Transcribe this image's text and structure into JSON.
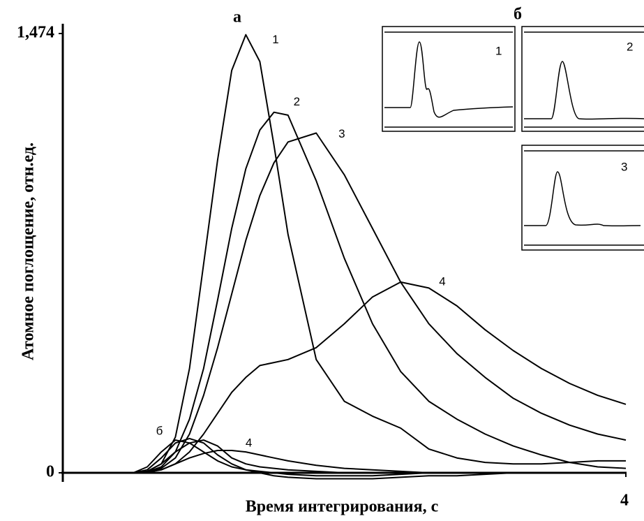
{
  "chart_data": {
    "type": "line",
    "panel_label": "а",
    "x_label": "Время интегрирования, с",
    "y_label": "Атомное поглощение, отн.ед.",
    "xlim": [
      0,
      4
    ],
    "ylim": [
      0,
      1.474
    ],
    "xticks": [
      4
    ],
    "yticks": [
      0,
      {
        "value": 1.474,
        "label": "1,474"
      }
    ],
    "x": [
      0,
      0.5,
      0.6,
      0.7,
      0.8,
      0.9,
      1.0,
      1.1,
      1.2,
      1.3,
      1.4,
      1.5,
      1.6,
      1.8,
      2.0,
      2.2,
      2.4,
      2.6,
      2.8,
      3.0,
      3.2,
      3.4,
      3.6,
      3.8,
      4.0
    ],
    "series": [
      {
        "name": "1",
        "color": "#000000",
        "values": [
          0,
          0,
          0.005,
          0.03,
          0.12,
          0.35,
          0.7,
          1.05,
          1.35,
          1.47,
          1.38,
          1.1,
          0.8,
          0.38,
          0.24,
          0.19,
          0.15,
          0.08,
          0.05,
          0.035,
          0.03,
          0.03,
          0.035,
          0.04,
          0.04
        ]
      },
      {
        "name": "2",
        "color": "#000000",
        "values": [
          0,
          0,
          0.003,
          0.02,
          0.07,
          0.18,
          0.35,
          0.58,
          0.82,
          1.02,
          1.15,
          1.21,
          1.2,
          0.98,
          0.72,
          0.5,
          0.34,
          0.24,
          0.18,
          0.13,
          0.09,
          0.06,
          0.035,
          0.02,
          0.015
        ]
      },
      {
        "name": "3",
        "color": "#000000",
        "values": [
          0,
          0,
          0.002,
          0.015,
          0.05,
          0.13,
          0.26,
          0.42,
          0.6,
          0.78,
          0.93,
          1.04,
          1.11,
          1.14,
          1.0,
          0.82,
          0.64,
          0.5,
          0.4,
          0.32,
          0.25,
          0.2,
          0.16,
          0.13,
          0.11
        ]
      },
      {
        "name": "4",
        "color": "#000000",
        "values": [
          0,
          0,
          0.002,
          0.01,
          0.03,
          0.07,
          0.13,
          0.2,
          0.27,
          0.32,
          0.36,
          0.37,
          0.38,
          0.42,
          0.5,
          0.59,
          0.64,
          0.62,
          0.56,
          0.48,
          0.41,
          0.35,
          0.3,
          0.26,
          0.23
        ]
      }
    ],
    "small_series": [
      {
        "name": "б",
        "color": "#000000",
        "values": [
          0,
          0,
          0.01,
          0.05,
          0.1,
          0.115,
          0.1,
          0.06,
          0.03,
          0.01,
          0,
          -0.01,
          -0.015,
          -0.02,
          -0.02,
          -0.02,
          -0.015,
          -0.01,
          -0.01,
          -0.005,
          0,
          0,
          0,
          0,
          0
        ]
      },
      {
        "color": "#000000",
        "values": [
          0,
          0,
          0.02,
          0.07,
          0.11,
          0.1,
          0.07,
          0.04,
          0.02,
          0.01,
          0.005,
          0,
          -0.005,
          -0.01,
          -0.01,
          -0.01,
          -0.005,
          0,
          0,
          0,
          0,
          0,
          0,
          0,
          0
        ]
      },
      {
        "color": "#000000",
        "values": [
          0,
          0,
          0.005,
          0.03,
          0.07,
          0.1,
          0.11,
          0.09,
          0.05,
          0.03,
          0.02,
          0.015,
          0.01,
          0.005,
          0,
          0,
          0,
          0,
          0,
          0,
          0,
          0,
          0,
          0,
          0
        ]
      },
      {
        "name": "4",
        "color": "#000000",
        "values": [
          0,
          0,
          0.002,
          0.01,
          0.03,
          0.05,
          0.065,
          0.075,
          0.075,
          0.07,
          0.06,
          0.05,
          0.04,
          0.025,
          0.015,
          0.01,
          0.005,
          0,
          0,
          0,
          0,
          0,
          0,
          0,
          0
        ]
      }
    ],
    "inset_panel_label": "б",
    "inset_labels": [
      "1",
      "2",
      "3"
    ]
  }
}
